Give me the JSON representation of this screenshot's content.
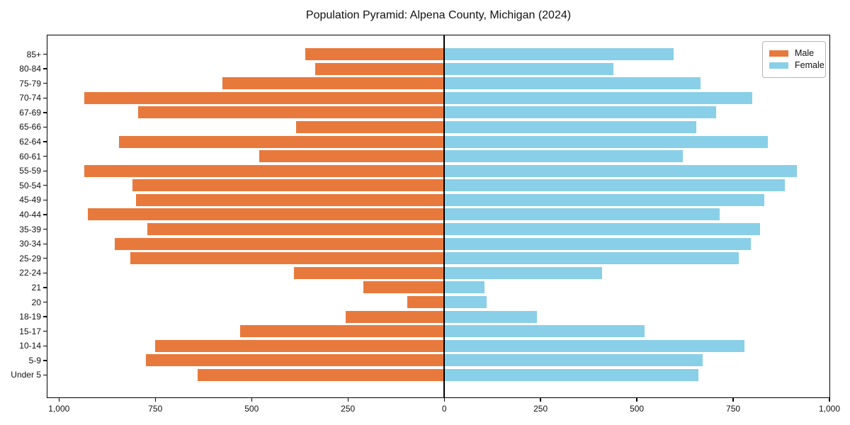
{
  "title": "Population Pyramid: Alpena County, Michigan (2024)",
  "legend": {
    "male_label": "Male",
    "female_label": "Female"
  },
  "colors": {
    "male": "#E8793D",
    "female": "#89CFE8",
    "axis": "#000000"
  },
  "chart_data": {
    "type": "bar",
    "subtype": "population-pyramid",
    "title": "Population Pyramid: Alpena County, Michigan (2024)",
    "categories": [
      "85+",
      "80-84",
      "75-79",
      "70-74",
      "67-69",
      "65-66",
      "62-64",
      "60-61",
      "55-59",
      "50-54",
      "45-49",
      "40-44",
      "35-39",
      "30-34",
      "25-29",
      "22-24",
      "21",
      "20",
      "18-19",
      "15-17",
      "10-14",
      "5-9",
      "Under 5"
    ],
    "series": [
      {
        "name": "Male",
        "side": "left",
        "color": "#E8793D",
        "values": [
          360,
          335,
          575,
          935,
          795,
          385,
          845,
          480,
          935,
          810,
          800,
          925,
          770,
          855,
          815,
          390,
          210,
          95,
          255,
          530,
          750,
          775,
          640
        ]
      },
      {
        "name": "Female",
        "side": "right",
        "color": "#89CFE8",
        "values": [
          595,
          440,
          665,
          800,
          705,
          655,
          840,
          620,
          915,
          885,
          830,
          715,
          820,
          795,
          765,
          410,
          105,
          110,
          240,
          520,
          780,
          670,
          660
        ]
      }
    ],
    "x_tick_values": [
      -1000,
      -750,
      -500,
      -250,
      0,
      250,
      500,
      750,
      1000
    ],
    "x_tick_labels": [
      "1,000",
      "750",
      "500",
      "250",
      "0",
      "250",
      "500",
      "750",
      "1,000"
    ],
    "xlim": [
      -1030,
      1000
    ],
    "grid": false,
    "legend_position": "upper right"
  }
}
